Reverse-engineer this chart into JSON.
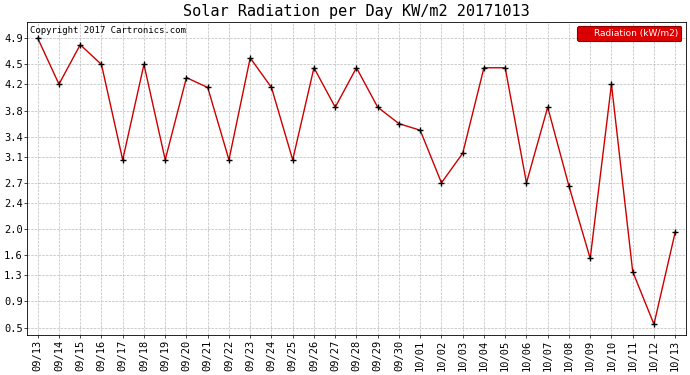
{
  "title": "Solar Radiation per Day KW/m2 20171013",
  "copyright_text": "Copyright 2017 Cartronics.com",
  "legend_label": "Radiation (kW/m2)",
  "labels": [
    "09/13",
    "09/14",
    "09/15",
    "09/16",
    "09/17",
    "09/18",
    "09/19",
    "09/20",
    "09/21",
    "09/22",
    "09/23",
    "09/24",
    "09/25",
    "09/26",
    "09/27",
    "09/28",
    "09/29",
    "09/30",
    "10/01",
    "10/02",
    "10/03",
    "10/04",
    "10/05",
    "10/06",
    "10/07",
    "10/08",
    "10/09",
    "10/10",
    "10/11",
    "10/12",
    "10/13"
  ],
  "values": [
    4.9,
    4.2,
    4.8,
    4.5,
    3.05,
    4.5,
    3.05,
    4.3,
    4.15,
    3.05,
    4.6,
    4.15,
    3.05,
    4.45,
    3.85,
    4.45,
    3.85,
    3.6,
    3.5,
    2.7,
    3.15,
    4.45,
    4.45,
    2.7,
    3.85,
    2.65,
    1.55,
    4.2,
    1.35,
    0.55,
    1.95
  ],
  "yticks": [
    0.5,
    0.9,
    1.3,
    1.6,
    2.0,
    2.4,
    2.7,
    3.1,
    3.4,
    3.8,
    4.2,
    4.5,
    4.9
  ],
  "ylim": [
    0.38,
    5.15
  ],
  "line_color": "#cc0000",
  "marker_color": "#000000",
  "bg_color": "#ffffff",
  "plot_bg_color": "#ffffff",
  "grid_color": "#bbbbbb",
  "legend_bg": "#dd0000",
  "legend_text_color": "#ffffff",
  "title_fontsize": 11,
  "tick_fontsize": 7.5,
  "copyright_fontsize": 6.5
}
